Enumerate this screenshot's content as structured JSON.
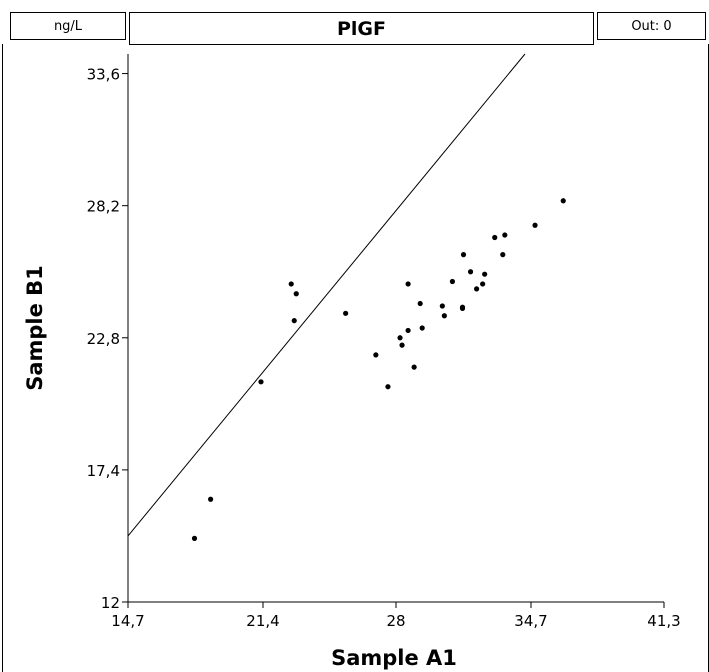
{
  "header": {
    "unit": "ng/L",
    "title": "PlGF",
    "out": "Out: 0"
  },
  "chart_data": {
    "type": "scatter",
    "title": "PlGF",
    "xlabel": "Sample A1",
    "ylabel": "Sample B1",
    "xlim": [
      14.7,
      41.3
    ],
    "ylim": [
      12,
      34.4
    ],
    "xticks": [
      "14,7",
      "21,4",
      "28",
      "34,7",
      "41,3"
    ],
    "yticks": [
      "12",
      "17,4",
      "22,8",
      "28,2",
      "33,6"
    ],
    "identity_line": true,
    "points": [
      {
        "x": 18.0,
        "y": 14.6
      },
      {
        "x": 18.8,
        "y": 16.2
      },
      {
        "x": 21.3,
        "y": 21.0
      },
      {
        "x": 22.8,
        "y": 25.0
      },
      {
        "x": 22.95,
        "y": 23.5
      },
      {
        "x": 23.05,
        "y": 24.6
      },
      {
        "x": 25.5,
        "y": 23.8
      },
      {
        "x": 27.0,
        "y": 22.1
      },
      {
        "x": 27.6,
        "y": 20.8
      },
      {
        "x": 28.2,
        "y": 22.8
      },
      {
        "x": 28.3,
        "y": 22.5
      },
      {
        "x": 28.6,
        "y": 23.1
      },
      {
        "x": 28.6,
        "y": 25.0
      },
      {
        "x": 28.9,
        "y": 21.6
      },
      {
        "x": 29.2,
        "y": 24.2
      },
      {
        "x": 29.3,
        "y": 23.2
      },
      {
        "x": 30.3,
        "y": 24.1
      },
      {
        "x": 30.4,
        "y": 23.7
      },
      {
        "x": 30.8,
        "y": 25.1
      },
      {
        "x": 31.3,
        "y": 24.0
      },
      {
        "x": 31.3,
        "y": 24.05
      },
      {
        "x": 31.35,
        "y": 26.2
      },
      {
        "x": 31.7,
        "y": 25.5
      },
      {
        "x": 32.0,
        "y": 24.8
      },
      {
        "x": 32.3,
        "y": 25.0
      },
      {
        "x": 32.4,
        "y": 25.4
      },
      {
        "x": 32.9,
        "y": 26.9
      },
      {
        "x": 33.3,
        "y": 26.2
      },
      {
        "x": 33.4,
        "y": 27.0
      },
      {
        "x": 34.9,
        "y": 27.4
      },
      {
        "x": 36.3,
        "y": 28.4
      }
    ]
  }
}
